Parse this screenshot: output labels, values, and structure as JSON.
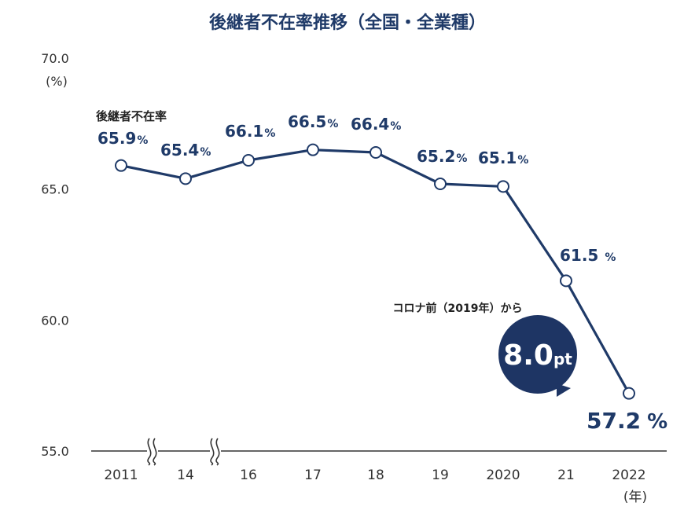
{
  "chart_data": {
    "type": "line",
    "title": "後継者不在率推移（全国・全業種）",
    "y_unit": "(%)",
    "x_unit": "(年)",
    "ylim": [
      55.0,
      70.0
    ],
    "y_ticks": [
      "70.0",
      "65.0",
      "60.0",
      "55.0"
    ],
    "categories": [
      "2011",
      "14",
      "16",
      "17",
      "18",
      "19",
      "2020",
      "21",
      "2022"
    ],
    "series": [
      {
        "name": "後継者不在率",
        "values": [
          65.9,
          65.4,
          66.1,
          66.5,
          66.4,
          65.2,
          65.1,
          61.5,
          57.2
        ],
        "labels": [
          "65.9",
          "65.4",
          "66.1",
          "66.5",
          "66.4",
          "65.2",
          "65.1",
          "61.5",
          "57.2"
        ],
        "label_unit": "%"
      }
    ],
    "axis_break_between": [
      [
        "2011",
        "14"
      ],
      [
        "14",
        "16"
      ]
    ],
    "callout": {
      "text": "コロナ前（2019年）から",
      "value": "8.0",
      "unit": "pt"
    },
    "grid": false,
    "colors": {
      "line": "#1f3a68",
      "bubble": "#1e3564",
      "marker_fill": "#ffffff"
    }
  }
}
